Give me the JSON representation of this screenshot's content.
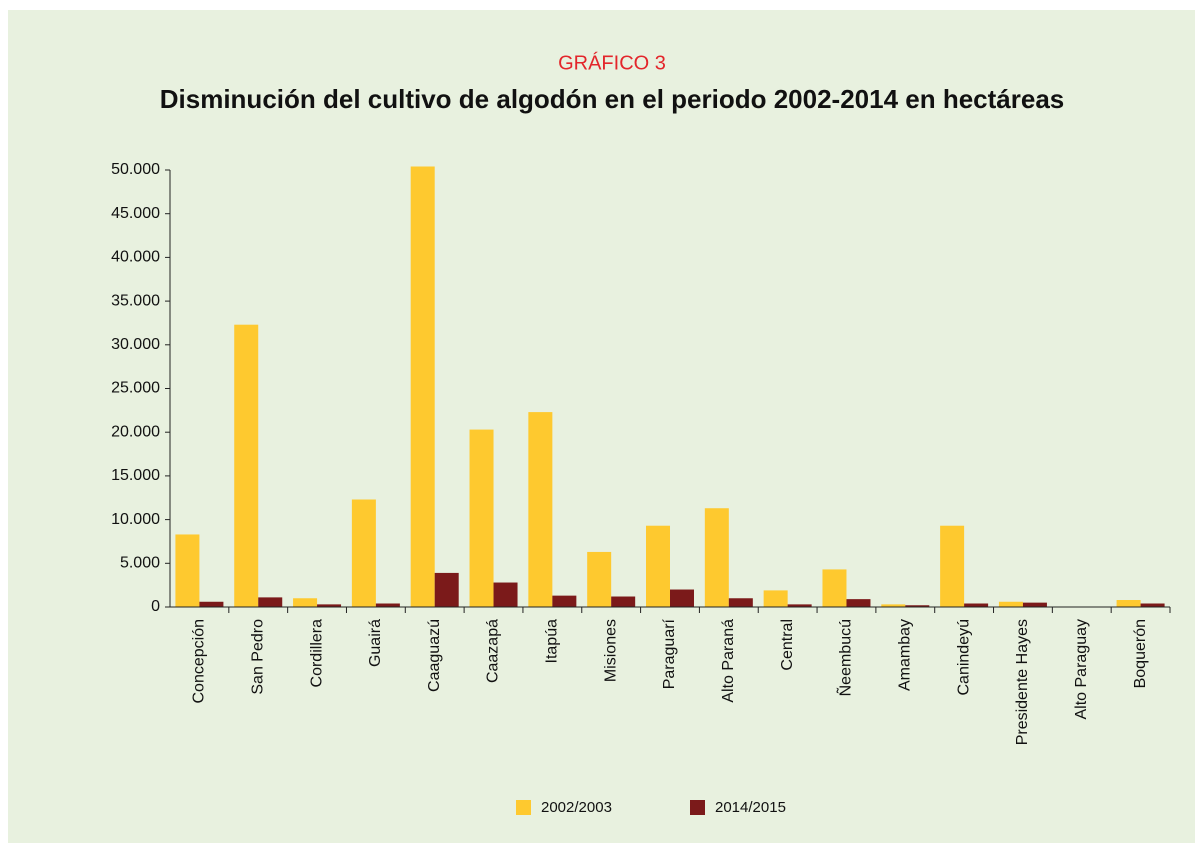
{
  "chart_data": {
    "type": "bar",
    "subtitle": "GRÁFICO 3",
    "title": "Disminución del cultivo de algodón en el periodo 2002-2014 en hectáreas",
    "categories": [
      "Concepción",
      "San Pedro",
      "Cordillera",
      "Guairá",
      "Caaguazú",
      "Caazapá",
      "Itapúa",
      "Misiones",
      "Paraguarí",
      "Alto Paraná",
      "Central",
      "Ñeembucú",
      "Amambay",
      "Canindeyú",
      "Presidente Hayes",
      "Alto Paraguay",
      "Boquerón"
    ],
    "series": [
      {
        "name": "2002/2003",
        "color": "#fec92f",
        "values": [
          8300,
          32300,
          1000,
          12300,
          50400,
          20300,
          22300,
          6300,
          9300,
          11300,
          1900,
          4300,
          300,
          9300,
          600,
          0,
          800
        ]
      },
      {
        "name": "2014/2015",
        "color": "#7b1a1a",
        "values": [
          600,
          1100,
          300,
          400,
          3900,
          2800,
          1300,
          1200,
          2000,
          1000,
          300,
          900,
          200,
          400,
          500,
          0,
          400
        ]
      }
    ],
    "ylim": [
      0,
      50000
    ],
    "yticks": [
      0,
      {
        "value": 5000,
        "label": "5.000"
      },
      {
        "value": 10000,
        "label": "10.000"
      },
      {
        "value": 15000,
        "label": "15.000"
      },
      {
        "value": 20000,
        "label": "20.000"
      },
      {
        "value": 25000,
        "label": "25.000"
      },
      {
        "value": 30000,
        "label": "30.000"
      },
      {
        "value": 35000,
        "label": "35.000"
      },
      {
        "value": 40000,
        "label": "40.000"
      },
      {
        "value": 45000,
        "label": "45.000"
      },
      {
        "value": 50000,
        "label": "50.000"
      }
    ],
    "legend": "bottom"
  }
}
